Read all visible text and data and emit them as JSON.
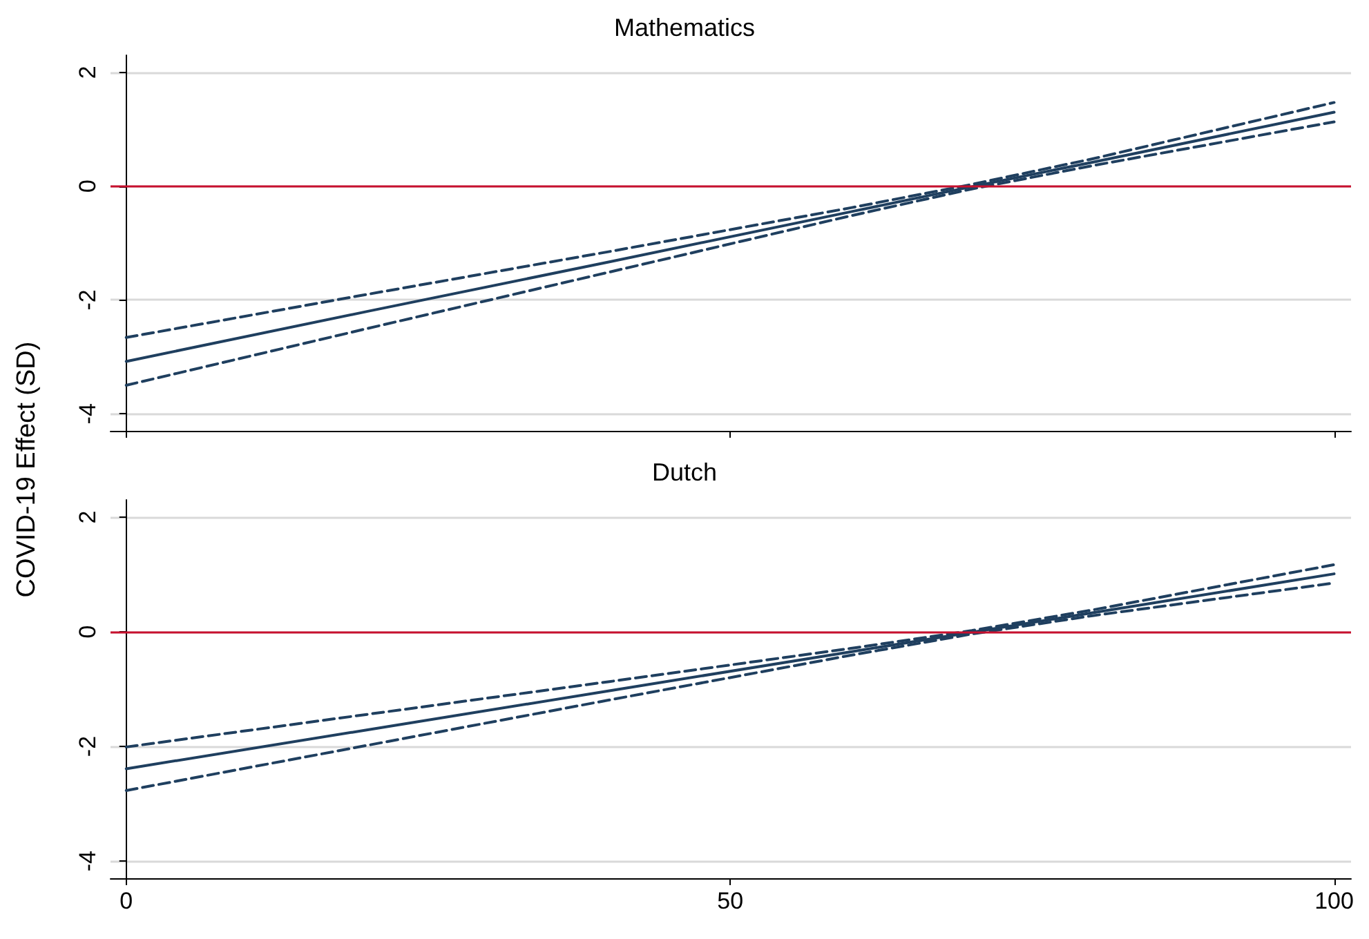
{
  "chart_data": [
    {
      "type": "line",
      "title": "Mathematics",
      "ylabel": "COVID-19 Effect (SD)",
      "x": [
        0,
        20,
        40,
        60,
        70,
        80,
        100
      ],
      "xlim": [
        -1.3,
        101.4
      ],
      "xticks": [
        0,
        50,
        100
      ],
      "ylim": [
        -4.3,
        2.3
      ],
      "yticks": [
        -4,
        -2,
        0,
        2
      ],
      "grid": "y",
      "marker": "none",
      "tick_labels": "y",
      "ref_lines": [
        {
          "axis": "y",
          "value": 0,
          "color": "#c8102e"
        }
      ],
      "series": [
        {
          "color": "#1f3f5f",
          "line_style": "solid",
          "values": [
            -3.08,
            -2.2,
            -1.33,
            -0.45,
            -0.01,
            0.42,
            1.3
          ]
        },
        {
          "color": "#1f3f5f",
          "line_style": "dashed",
          "values": [
            -2.66,
            -1.9,
            -1.15,
            -0.38,
            0.03,
            0.48,
            1.47
          ]
        },
        {
          "color": "#1f3f5f",
          "line_style": "dashed",
          "values": [
            -3.5,
            -2.5,
            -1.51,
            -0.52,
            -0.05,
            0.36,
            1.13
          ]
        }
      ]
    },
    {
      "type": "line",
      "title": "Dutch",
      "x": [
        0,
        20,
        40,
        60,
        70,
        80,
        100
      ],
      "xlim": [
        -1.3,
        101.4
      ],
      "xticks": [
        0,
        50,
        100
      ],
      "ylim": [
        -4.3,
        2.3
      ],
      "yticks": [
        -4,
        -2,
        0,
        2
      ],
      "grid": "y",
      "marker": "none",
      "ref_lines": [
        {
          "axis": "y",
          "value": 0,
          "color": "#c8102e"
        }
      ],
      "series": [
        {
          "color": "#1f3f5f",
          "line_style": "solid",
          "values": [
            -2.39,
            -1.71,
            -1.03,
            -0.35,
            -0.01,
            0.33,
            1.01
          ]
        },
        {
          "color": "#1f3f5f",
          "line_style": "dashed",
          "values": [
            -2.01,
            -1.44,
            -0.87,
            -0.29,
            0.02,
            0.38,
            1.17
          ]
        },
        {
          "color": "#1f3f5f",
          "line_style": "dashed",
          "values": [
            -2.77,
            -1.98,
            -1.19,
            -0.41,
            -0.04,
            0.28,
            0.85
          ]
        }
      ]
    }
  ]
}
